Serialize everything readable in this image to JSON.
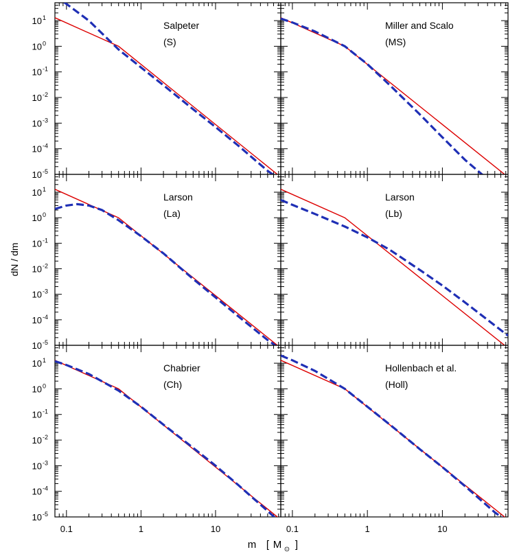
{
  "figure": {
    "ylabel": "dN / dm",
    "xlabel_main": "m",
    "xlabel_unit": "M",
    "xlabel_sub": "⊙",
    "bracket_open": "[",
    "bracket_close": "]"
  },
  "colors": {
    "reference": "#dd0000",
    "model": "#1f2fb5",
    "axis": "#000000"
  },
  "axes": {
    "x_scale": "log",
    "y_scale": "log",
    "xlim": [
      0.07,
      75
    ],
    "ylim": [
      1e-05,
      50
    ],
    "xticks": [
      0.1,
      1,
      10
    ],
    "xtick_labels": [
      "0.1",
      "1",
      "10"
    ],
    "yticks": [
      10,
      1,
      0.1,
      0.01,
      0.001,
      0.0001,
      1e-05
    ],
    "ytick_mantissa": [
      "10",
      "10",
      "10",
      "10",
      "10",
      "10",
      "10"
    ],
    "ytick_exponent": [
      "1",
      "0",
      "-1",
      "-2",
      "-3",
      "-4",
      "-5"
    ]
  },
  "chart_data": [
    {
      "type": "line",
      "panel": "top-left",
      "label_line1": "Salpeter",
      "label_line2": "(S)",
      "series": [
        {
          "role": "reference",
          "style": "solid",
          "x": [
            0.07,
            0.5,
            75
          ],
          "y": [
            13.0,
            1.0,
            7.8e-06
          ]
        },
        {
          "role": "model",
          "style": "dashed",
          "x": [
            0.07,
            0.1,
            0.2,
            0.5,
            1,
            2,
            5,
            10,
            20,
            50,
            75
          ],
          "y": [
            90,
            45,
            10,
            0.75,
            0.15,
            0.03,
            0.0035,
            0.0007,
            0.000135,
            1.37e-05,
            6e-06
          ]
        }
      ]
    },
    {
      "type": "line",
      "panel": "top-right",
      "label_line1": "Miller and Scalo",
      "label_line2": "(MS)",
      "series": [
        {
          "role": "reference",
          "style": "solid",
          "x": [
            0.07,
            0.5,
            75
          ],
          "y": [
            13.0,
            1.0,
            7.8e-06
          ]
        },
        {
          "role": "model",
          "style": "dashed",
          "x": [
            0.07,
            0.1,
            0.2,
            0.5,
            1,
            2,
            5,
            10,
            20,
            40
          ],
          "y": [
            12,
            8.5,
            3.8,
            1.0,
            0.2,
            0.03,
            0.0022,
            0.00028,
            3.7e-05,
            6.5e-06
          ]
        }
      ]
    },
    {
      "type": "line",
      "panel": "middle-left",
      "label_line1": "Larson",
      "label_line2": "(La)",
      "series": [
        {
          "role": "reference",
          "style": "solid",
          "x": [
            0.07,
            0.5,
            75
          ],
          "y": [
            13.0,
            1.0,
            7.8e-06
          ]
        },
        {
          "role": "model",
          "style": "dashed",
          "x": [
            0.07,
            0.1,
            0.14,
            0.2,
            0.3,
            0.5,
            1,
            2,
            5,
            10,
            20,
            50,
            75
          ],
          "y": [
            2.2,
            3.0,
            3.4,
            3.0,
            2.0,
            0.8,
            0.19,
            0.04,
            0.004,
            0.00075,
            0.00014,
            1.6e-05,
            7e-06
          ]
        }
      ]
    },
    {
      "type": "line",
      "panel": "middle-right",
      "label_line1": "Larson",
      "label_line2": "(Lb)",
      "series": [
        {
          "role": "reference",
          "style": "solid",
          "x": [
            0.07,
            0.5,
            75
          ],
          "y": [
            13.0,
            1.0,
            7.8e-06
          ]
        },
        {
          "role": "model",
          "style": "dashed",
          "x": [
            0.07,
            0.1,
            0.2,
            0.5,
            1,
            2,
            5,
            10,
            20,
            50,
            75
          ],
          "y": [
            5.0,
            3.2,
            1.4,
            0.45,
            0.17,
            0.055,
            0.009,
            0.0022,
            0.00048,
            6e-05,
            2.4e-05
          ]
        }
      ]
    },
    {
      "type": "line",
      "panel": "bottom-left",
      "label_line1": "Chabrier",
      "label_line2": "(Ch)",
      "series": [
        {
          "role": "reference",
          "style": "solid",
          "x": [
            0.07,
            0.5,
            75
          ],
          "y": [
            13.0,
            1.0,
            7.8e-06
          ]
        },
        {
          "role": "model",
          "style": "dashed",
          "x": [
            0.07,
            0.1,
            0.2,
            0.5,
            1,
            2,
            5,
            10,
            20,
            50,
            65
          ],
          "y": [
            12,
            8.5,
            3.8,
            0.85,
            0.2,
            0.04,
            0.005,
            0.001,
            0.00018,
            1.7e-05,
            8.5e-06
          ]
        }
      ]
    },
    {
      "type": "line",
      "panel": "bottom-right",
      "label_line1": "Hollenbach et al.",
      "label_line2": "(Holl)",
      "series": [
        {
          "role": "reference",
          "style": "solid",
          "x": [
            0.07,
            0.5,
            75
          ],
          "y": [
            13.0,
            1.0,
            7.8e-06
          ]
        },
        {
          "role": "model",
          "style": "dashed",
          "x": [
            0.07,
            0.1,
            0.2,
            0.5,
            1,
            2,
            5,
            10,
            20,
            50,
            70
          ],
          "y": [
            20,
            13,
            5,
            1.0,
            0.2,
            0.04,
            0.0044,
            0.00088,
            0.00016,
            1.5e-05,
            7.5e-06
          ]
        }
      ]
    }
  ]
}
